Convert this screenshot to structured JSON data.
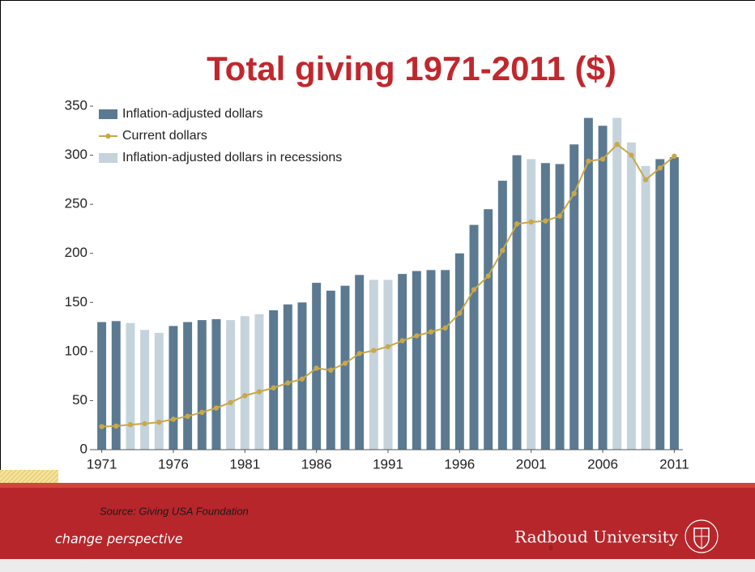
{
  "chart_data": {
    "type": "bar_line",
    "title": "Total giving 1971-2011 ($)",
    "source": "Source: Giving USA Foundation",
    "tagline": "change perspective",
    "brand": "Radboud University",
    "page_number": "6",
    "x": [
      1971,
      1972,
      1973,
      1974,
      1975,
      1976,
      1977,
      1978,
      1979,
      1980,
      1981,
      1982,
      1983,
      1984,
      1985,
      1986,
      1987,
      1988,
      1989,
      1990,
      1991,
      1992,
      1993,
      1994,
      1995,
      1996,
      1997,
      1998,
      1999,
      2000,
      2001,
      2002,
      2003,
      2004,
      2005,
      2006,
      2007,
      2008,
      2009,
      2010,
      2011
    ],
    "xlim": [
      1970.4,
      2011.6
    ],
    "xticks": [
      1971,
      1976,
      1981,
      1986,
      1991,
      1996,
      2001,
      2006,
      2011
    ],
    "ylim": [
      0,
      350
    ],
    "yticks": [
      0,
      50,
      100,
      150,
      200,
      250,
      300,
      350
    ],
    "series": [
      {
        "name": "Inflation-adjusted dollars",
        "kind": "bar",
        "color": "#5b7a91",
        "values": [
          130,
          131,
          null,
          null,
          null,
          126,
          130,
          132,
          133,
          null,
          null,
          null,
          142,
          148,
          150,
          170,
          162,
          167,
          178,
          null,
          null,
          179,
          182,
          183,
          183,
          200,
          229,
          245,
          274,
          300,
          null,
          292,
          291,
          311,
          338,
          330,
          null,
          null,
          null,
          296,
          298
        ]
      },
      {
        "name": "Current dollars",
        "kind": "line",
        "color": "#c9a84a",
        "values": [
          23.5,
          24,
          25.5,
          26.5,
          28,
          31,
          34,
          38,
          42.5,
          48,
          55,
          59,
          63,
          68,
          72,
          83,
          81,
          88,
          98,
          101,
          105,
          111,
          116,
          120,
          124,
          139,
          163,
          177,
          203,
          230,
          232,
          233,
          238,
          261,
          294,
          296,
          311,
          300,
          275,
          287,
          299
        ]
      },
      {
        "name": "Inflation-adjusted dollars in recessions",
        "kind": "bar",
        "color": "#c5d3dc",
        "values": [
          null,
          null,
          129,
          122,
          119,
          null,
          null,
          null,
          null,
          132,
          136,
          138,
          null,
          null,
          null,
          null,
          null,
          null,
          null,
          173,
          173,
          null,
          null,
          null,
          null,
          null,
          null,
          null,
          null,
          null,
          296,
          null,
          null,
          null,
          null,
          null,
          338,
          313,
          289,
          null,
          null
        ]
      }
    ],
    "legend": "top-left"
  }
}
